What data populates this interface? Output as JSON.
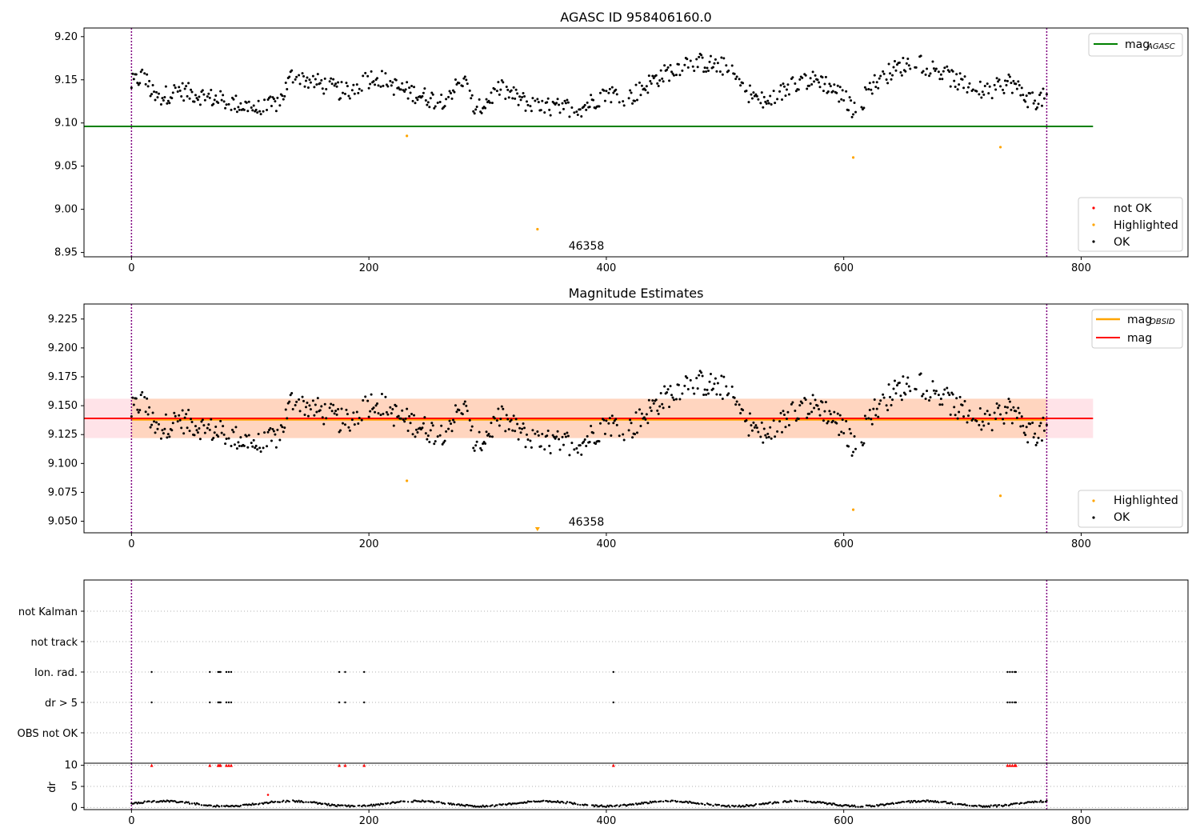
{
  "colors": {
    "ok": "#000000",
    "highlighted": "#ffa500",
    "not_ok": "#ff0000",
    "mag_agasc": "#008000",
    "mag_obsid": "#ffa500",
    "mag": "#ff0000",
    "band_pink": "#ffc0cb",
    "band_orange": "#ffcba4",
    "obs_boundary": "#800080",
    "grid": "#b0b0b0"
  },
  "obs_label": "46358",
  "chart_data": [
    {
      "type": "scatter",
      "title": "AGASC ID 958406160.0",
      "xlim": [
        -40,
        890
      ],
      "ylim": [
        8.945,
        9.21
      ],
      "xticks": [
        "0",
        "200",
        "400",
        "600",
        "800"
      ],
      "yticks": [
        "8.95",
        "9.00",
        "9.05",
        "9.10",
        "9.15",
        "9.20"
      ],
      "mag_agasc": 9.096,
      "line_x_range": [
        -40,
        810
      ],
      "obs_boundaries": [
        0,
        771
      ],
      "legend_lines": [
        {
          "name": "mag",
          "sub": "AGASC",
          "color": "mag_agasc"
        }
      ],
      "legend_points": [
        {
          "name": "not OK",
          "color": "not_ok"
        },
        {
          "name": "Highlighted",
          "color": "highlighted"
        },
        {
          "name": "OK",
          "color": "ok"
        }
      ],
      "highlighted_points": [
        [
          232,
          9.085
        ],
        [
          342,
          8.977
        ],
        [
          608,
          9.06
        ],
        [
          732,
          9.072
        ]
      ],
      "ok_series_x_range": [
        0,
        771
      ],
      "ok_series_anchors": [
        [
          0,
          9.145
        ],
        [
          10,
          9.155
        ],
        [
          20,
          9.128
        ],
        [
          40,
          9.138
        ],
        [
          70,
          9.128
        ],
        [
          110,
          9.115
        ],
        [
          125,
          9.125
        ],
        [
          135,
          9.155
        ],
        [
          160,
          9.145
        ],
        [
          180,
          9.135
        ],
        [
          205,
          9.155
        ],
        [
          225,
          9.14
        ],
        [
          260,
          9.125
        ],
        [
          280,
          9.15
        ],
        [
          290,
          9.112
        ],
        [
          310,
          9.14
        ],
        [
          340,
          9.118
        ],
        [
          380,
          9.118
        ],
        [
          400,
          9.135
        ],
        [
          420,
          9.13
        ],
        [
          440,
          9.15
        ],
        [
          470,
          9.172
        ],
        [
          500,
          9.165
        ],
        [
          520,
          9.135
        ],
        [
          535,
          9.122
        ],
        [
          560,
          9.148
        ],
        [
          580,
          9.15
        ],
        [
          600,
          9.13
        ],
        [
          612,
          9.108
        ],
        [
          620,
          9.14
        ],
        [
          640,
          9.16
        ],
        [
          660,
          9.172
        ],
        [
          680,
          9.16
        ],
        [
          700,
          9.145
        ],
        [
          720,
          9.135
        ],
        [
          740,
          9.148
        ],
        [
          758,
          9.125
        ],
        [
          771,
          9.13
        ]
      ]
    },
    {
      "type": "scatter",
      "title": "Magnitude Estimates",
      "xlim": [
        -40,
        890
      ],
      "ylim": [
        9.04,
        9.238
      ],
      "xticks": [
        "0",
        "200",
        "400",
        "600",
        "800"
      ],
      "yticks": [
        "9.050",
        "9.075",
        "9.100",
        "9.125",
        "9.150",
        "9.175",
        "9.200",
        "9.225"
      ],
      "mag": 9.139,
      "mag_obsid": 9.138,
      "band_pink": [
        9.122,
        9.156
      ],
      "band_orange": [
        9.122,
        9.156
      ],
      "line_x_range": [
        -40,
        810
      ],
      "obs_boundaries": [
        0,
        771
      ],
      "legend_lines": [
        {
          "name": "mag",
          "sub": "OBSID",
          "color": "mag_obsid"
        },
        {
          "name": "mag",
          "sub": "",
          "color": "mag"
        }
      ],
      "legend_points": [
        {
          "name": "Highlighted",
          "color": "highlighted"
        },
        {
          "name": "OK",
          "color": "ok"
        }
      ],
      "highlighted_points": [
        [
          232,
          9.085
        ],
        [
          608,
          9.06
        ],
        [
          732,
          9.072
        ]
      ],
      "offscale_marker": [
        342,
        9.04
      ]
    },
    {
      "type": "scatter",
      "title": "",
      "xlim": [
        -40,
        890
      ],
      "flag_rows": [
        "not Kalman",
        "not track",
        "Ion. rad.",
        "dr > 5",
        "OBS not OK"
      ],
      "flag_points": {
        "Ion. rad.": [
          17,
          66,
          73,
          74,
          75,
          80,
          82,
          84,
          175,
          180,
          196,
          406,
          738,
          740,
          742,
          744,
          745
        ],
        "dr > 5": [
          17,
          66,
          73,
          74,
          75,
          80,
          82,
          84,
          175,
          180,
          196,
          406,
          738,
          740,
          742,
          744,
          745
        ]
      },
      "obs_boundaries": [
        0,
        771
      ]
    },
    {
      "type": "scatter",
      "title": "",
      "xlim": [
        -40,
        890
      ],
      "ylim": [
        -0.5,
        10.5
      ],
      "xticks": [
        "0",
        "200",
        "400",
        "600",
        "800"
      ],
      "yticks": [
        "0",
        "5",
        "10"
      ],
      "ylabel": "dr",
      "dr_clipped_at": 10,
      "dr_clipped_x": [
        17,
        66,
        73,
        74,
        75,
        80,
        82,
        84,
        175,
        180,
        196,
        406,
        738,
        740,
        742,
        744,
        745
      ],
      "dr_outlier": [
        115,
        3
      ],
      "dr_baseline_x_range": [
        0,
        771
      ],
      "obs_boundaries": [
        0,
        771
      ]
    }
  ]
}
